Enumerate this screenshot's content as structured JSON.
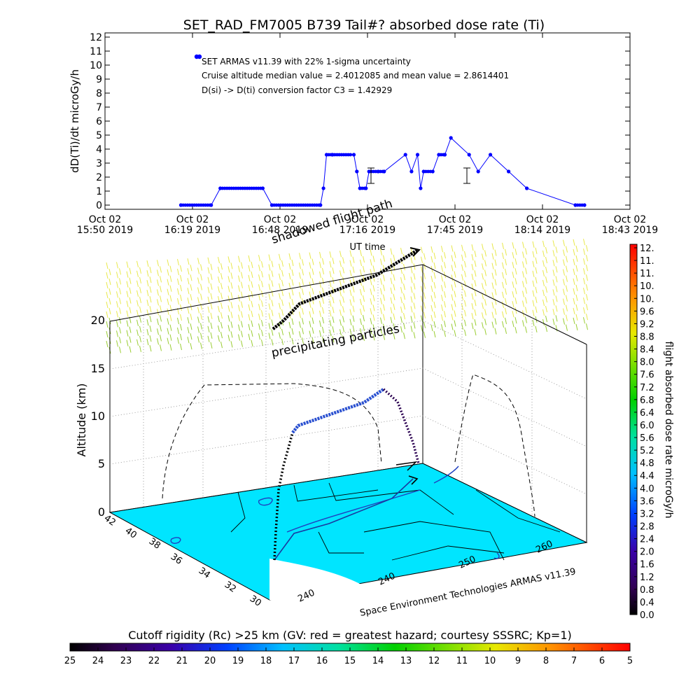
{
  "title": "SET_RAD_FM7005   B739 Tail#? absorbed dose rate (Ti)",
  "top_plot": {
    "ylabel": "dD(Ti)/dt microGy/h",
    "xlabel": "UT time",
    "y_ticks": [
      "0",
      "1",
      "2",
      "3",
      "4",
      "5",
      "6",
      "7",
      "8",
      "9",
      "10",
      "11",
      "12"
    ],
    "x_ticks": [
      {
        "line1": "Oct 02",
        "line2": "15:50 2019"
      },
      {
        "line1": "Oct 02",
        "line2": "16:19 2019"
      },
      {
        "line1": "Oct 02",
        "line2": "16:48 2019"
      },
      {
        "line1": "Oct 02",
        "line2": "17:16 2019"
      },
      {
        "line1": "Oct 02",
        "line2": "17:45 2019"
      },
      {
        "line1": "Oct 02",
        "line2": "18:14 2019"
      },
      {
        "line1": "Oct 02",
        "line2": "18:43 2019"
      }
    ],
    "annotations": [
      "SET ARMAS v11.39 with 22% 1-sigma uncertainty",
      "Cruise altitude median value = 2.4012085 and mean value = 2.8614401",
      "D(si) -> D(ti) conversion factor C3 = 1.42929"
    ]
  },
  "scene": {
    "z_label": "Altitude (km)",
    "z_ticks": [
      "0",
      "5",
      "10",
      "15",
      "20"
    ],
    "lat_ticks": [
      "42",
      "40",
      "38",
      "36",
      "34",
      "32",
      "30"
    ],
    "lon_ticks": [
      "240",
      "240",
      "250",
      "260"
    ],
    "shadow_label": "shadowed flight path",
    "precip_label": "precipitating particles",
    "credit": "Space Environment Technologies ARMAS v11.39"
  },
  "colorbar_right": {
    "label": "flight absorbed dose rate microGy/h",
    "ticks": [
      "12.",
      "11.",
      "11.",
      "10.",
      "10.",
      "9.6",
      "9.2",
      "8.8",
      "8.4",
      "8.0",
      "7.6",
      "7.2",
      "6.8",
      "6.4",
      "6.0",
      "5.6",
      "5.2",
      "4.8",
      "4.4",
      "4.0",
      "3.6",
      "3.2",
      "2.8",
      "2.4",
      "2.0",
      "1.6",
      "1.2",
      "0.8",
      "0.4",
      "0.0"
    ]
  },
  "colorbar_bottom": {
    "label": "Cutoff rigidity (Rc) >25 km (GV: red = greatest hazard; courtesy SSSRC; Kp=1)",
    "ticks": [
      "25",
      "24",
      "23",
      "22",
      "21",
      "20",
      "19",
      "18",
      "17",
      "16",
      "15",
      "14",
      "13",
      "12",
      "11",
      "10",
      "9",
      "8",
      "7",
      "6",
      "5"
    ]
  },
  "colors": {
    "series": "#0000ff",
    "map_fill": "#00e5ff",
    "precip": "#9acd32",
    "precip_top": "#e8e84a"
  },
  "chart_data": {
    "type": "scatter",
    "title": "SET_RAD_FM7005   B739 Tail#? absorbed dose rate (Ti)",
    "xlabel": "UT time",
    "ylabel": "dD(Ti)/dt microGy/h",
    "xlim": [
      "2019-10-02 15:50",
      "2019-10-02 18:43"
    ],
    "ylim": [
      0,
      12
    ],
    "grid": false,
    "series": [
      {
        "x": [
          "2019-10-02 16:15",
          "2019-10-02 16:25",
          "2019-10-02 16:28",
          "2019-10-02 16:42",
          "2019-10-02 16:45",
          "2019-10-02 17:01",
          "2019-10-02 17:02",
          "2019-10-02 17:03",
          "2019-10-02 17:05",
          "2019-10-02 17:12",
          "2019-10-02 17:13",
          "2019-10-02 17:14",
          "2019-10-02 17:16",
          "2019-10-02 17:17",
          "2019-10-02 17:20",
          "2019-10-02 17:22",
          "2019-10-02 17:29",
          "2019-10-02 17:31",
          "2019-10-02 17:33",
          "2019-10-02 17:34",
          "2019-10-02 17:35",
          "2019-10-02 17:38",
          "2019-10-02 17:40",
          "2019-10-02 17:42",
          "2019-10-02 17:44",
          "2019-10-02 17:50",
          "2019-10-02 17:53",
          "2019-10-02 17:57",
          "2019-10-02 18:03",
          "2019-10-02 18:09",
          "2019-10-02 18:25",
          "2019-10-02 18:28"
        ],
        "values": [
          0,
          0,
          1.2,
          1.2,
          0,
          0,
          1.2,
          3.6,
          3.6,
          3.6,
          2.4,
          1.2,
          1.2,
          2.4,
          2.4,
          2.4,
          3.6,
          2.4,
          3.6,
          1.2,
          2.4,
          2.4,
          3.6,
          3.6,
          4.8,
          3.6,
          2.4,
          3.6,
          2.4,
          1.2,
          0,
          0
        ]
      }
    ]
  }
}
